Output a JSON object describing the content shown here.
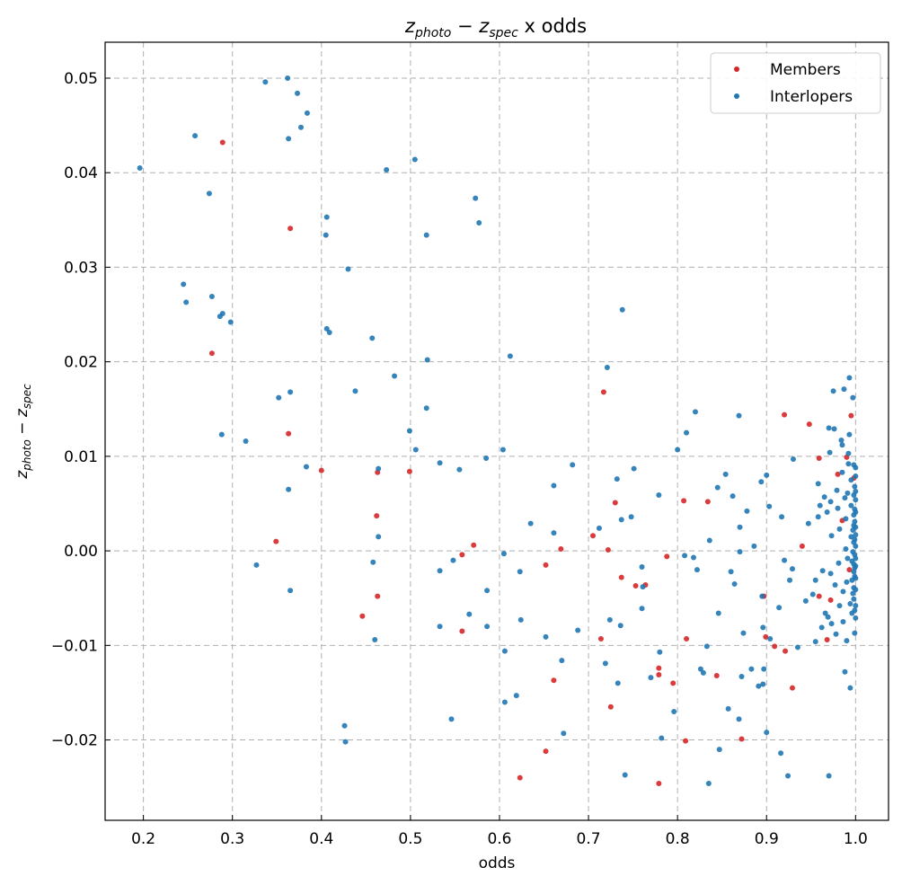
{
  "chart_data": {
    "type": "scatter",
    "title": {
      "base1": "z",
      "sub1": "photo",
      "minus": " − ",
      "base2": "z",
      "sub2": "spec",
      "rest": " x odds"
    },
    "xlabel": "odds",
    "ylabel": {
      "base1": "z",
      "sub1": "photo",
      "minus": " − ",
      "base2": "z",
      "sub2": "spec"
    },
    "xlim": [
      0.157,
      1.037
    ],
    "ylim": [
      -0.0285,
      0.0538
    ],
    "xticks": [
      0.2,
      0.3,
      0.4,
      0.5,
      0.6,
      0.7,
      0.8,
      0.9,
      1.0
    ],
    "xtick_labels": [
      "0.2",
      "0.3",
      "0.4",
      "0.5",
      "0.6",
      "0.7",
      "0.8",
      "0.9",
      "1.0"
    ],
    "yticks": [
      -0.02,
      -0.01,
      0.0,
      0.01,
      0.02,
      0.03,
      0.04,
      0.05
    ],
    "ytick_labels": [
      "−0.02",
      "−0.01",
      "0.00",
      "0.01",
      "0.02",
      "0.03",
      "0.04",
      "0.05"
    ],
    "grid": true,
    "legend_position": "top-right",
    "series": [
      {
        "name": "Members",
        "color": "#d62728",
        "points": [
          [
            0.289,
            0.0432
          ],
          [
            0.365,
            0.0341
          ],
          [
            0.277,
            0.0209
          ],
          [
            0.363,
            0.0124
          ],
          [
            0.349,
            0.001
          ],
          [
            0.4,
            0.0085
          ],
          [
            0.463,
            0.0083
          ],
          [
            0.499,
            0.0084
          ],
          [
            0.462,
            0.0037
          ],
          [
            0.463,
            -0.0048
          ],
          [
            0.446,
            -0.0069
          ],
          [
            0.571,
            0.0006
          ],
          [
            0.558,
            -0.0004
          ],
          [
            0.558,
            -0.0085
          ],
          [
            0.652,
            -0.0015
          ],
          [
            0.669,
            0.0002
          ],
          [
            0.661,
            -0.0137
          ],
          [
            0.652,
            -0.0212
          ],
          [
            0.623,
            -0.024
          ],
          [
            0.717,
            0.0168
          ],
          [
            0.73,
            0.0051
          ],
          [
            0.705,
            0.0016
          ],
          [
            0.722,
            0.0001
          ],
          [
            0.737,
            -0.0028
          ],
          [
            0.753,
            -0.0037
          ],
          [
            0.764,
            -0.0036
          ],
          [
            0.788,
            -0.0006
          ],
          [
            0.714,
            -0.0093
          ],
          [
            0.725,
            -0.0165
          ],
          [
            0.779,
            -0.0124
          ],
          [
            0.779,
            -0.0131
          ],
          [
            0.795,
            -0.014
          ],
          [
            0.779,
            -0.0246
          ],
          [
            0.807,
            0.0053
          ],
          [
            0.834,
            0.0052
          ],
          [
            0.81,
            -0.0093
          ],
          [
            0.809,
            -0.0201
          ],
          [
            0.844,
            -0.0132
          ],
          [
            0.872,
            -0.0199
          ],
          [
            0.897,
            -0.0048
          ],
          [
            0.899,
            -0.0091
          ],
          [
            0.909,
            -0.0101
          ],
          [
            0.921,
            -0.0106
          ],
          [
            0.929,
            -0.0145
          ],
          [
            0.92,
            0.0144
          ],
          [
            0.948,
            0.0134
          ],
          [
            0.94,
            0.0005
          ],
          [
            0.959,
            0.0098
          ],
          [
            0.959,
            -0.0048
          ],
          [
            0.968,
            -0.0094
          ],
          [
            0.99,
            0.0099
          ],
          [
            0.995,
            0.0143
          ],
          [
            0.998,
            0.0077
          ],
          [
            0.98,
            0.0081
          ],
          [
            0.972,
            -0.0052
          ],
          [
            0.985,
            0.0032
          ],
          [
            0.993,
            -0.002
          ]
        ]
      },
      {
        "name": "Interlopers",
        "color": "#1f77b4",
        "points": [
          [
            0.196,
            0.0405
          ],
          [
            0.258,
            0.0439
          ],
          [
            0.274,
            0.0378
          ],
          [
            0.245,
            0.0282
          ],
          [
            0.248,
            0.0263
          ],
          [
            0.277,
            0.0269
          ],
          [
            0.289,
            0.0251
          ],
          [
            0.286,
            0.0248
          ],
          [
            0.298,
            0.0242
          ],
          [
            0.288,
            0.0123
          ],
          [
            0.315,
            0.0116
          ],
          [
            0.327,
            -0.0015
          ],
          [
            0.337,
            0.0496
          ],
          [
            0.362,
            0.05
          ],
          [
            0.373,
            0.0484
          ],
          [
            0.384,
            0.0463
          ],
          [
            0.377,
            0.0448
          ],
          [
            0.363,
            0.0436
          ],
          [
            0.405,
            0.0334
          ],
          [
            0.406,
            0.0353
          ],
          [
            0.43,
            0.0298
          ],
          [
            0.406,
            0.0235
          ],
          [
            0.409,
            0.0231
          ],
          [
            0.365,
            0.0168
          ],
          [
            0.352,
            0.0162
          ],
          [
            0.383,
            0.0089
          ],
          [
            0.363,
            0.0065
          ],
          [
            0.365,
            -0.0042
          ],
          [
            0.457,
            0.0225
          ],
          [
            0.438,
            0.0169
          ],
          [
            0.464,
            0.0087
          ],
          [
            0.464,
            0.0015
          ],
          [
            0.458,
            -0.0012
          ],
          [
            0.46,
            -0.0094
          ],
          [
            0.426,
            -0.0185
          ],
          [
            0.427,
            -0.0202
          ],
          [
            0.473,
            0.0403
          ],
          [
            0.505,
            0.0414
          ],
          [
            0.518,
            0.0334
          ],
          [
            0.482,
            0.0185
          ],
          [
            0.519,
            0.0202
          ],
          [
            0.518,
            0.0151
          ],
          [
            0.499,
            0.0127
          ],
          [
            0.506,
            0.0107
          ],
          [
            0.533,
            0.0093
          ],
          [
            0.555,
            0.0086
          ],
          [
            0.548,
            -0.001
          ],
          [
            0.533,
            -0.0021
          ],
          [
            0.533,
            -0.008
          ],
          [
            0.566,
            -0.0067
          ],
          [
            0.586,
            -0.0042
          ],
          [
            0.586,
            -0.008
          ],
          [
            0.546,
            -0.0178
          ],
          [
            0.573,
            0.0373
          ],
          [
            0.577,
            0.0347
          ],
          [
            0.612,
            0.0206
          ],
          [
            0.585,
            0.0098
          ],
          [
            0.604,
            0.0107
          ],
          [
            0.605,
            -0.0003
          ],
          [
            0.623,
            -0.0022
          ],
          [
            0.624,
            -0.0073
          ],
          [
            0.606,
            -0.0106
          ],
          [
            0.606,
            -0.016
          ],
          [
            0.619,
            -0.0153
          ],
          [
            0.738,
            0.0255
          ],
          [
            0.721,
            0.0194
          ],
          [
            0.635,
            0.0029
          ],
          [
            0.661,
            0.0069
          ],
          [
            0.661,
            0.0019
          ],
          [
            0.682,
            0.0091
          ],
          [
            0.712,
            0.0024
          ],
          [
            0.732,
            0.0076
          ],
          [
            0.737,
            0.0033
          ],
          [
            0.748,
            0.0036
          ],
          [
            0.751,
            0.0087
          ],
          [
            0.652,
            -0.0091
          ],
          [
            0.688,
            -0.0084
          ],
          [
            0.67,
            -0.0116
          ],
          [
            0.672,
            -0.0193
          ],
          [
            0.719,
            -0.0119
          ],
          [
            0.724,
            -0.0073
          ],
          [
            0.736,
            -0.0079
          ],
          [
            0.733,
            -0.014
          ],
          [
            0.741,
            -0.0237
          ],
          [
            0.77,
            -0.0134
          ],
          [
            0.76,
            -0.0017
          ],
          [
            0.761,
            -0.0038
          ],
          [
            0.76,
            -0.0061
          ],
          [
            0.779,
            0.0059
          ],
          [
            0.78,
            -0.0107
          ],
          [
            0.782,
            -0.0198
          ],
          [
            0.796,
            -0.017
          ],
          [
            0.8,
            0.0107
          ],
          [
            0.81,
            0.0125
          ],
          [
            0.82,
            0.0147
          ],
          [
            0.808,
            -0.0005
          ],
          [
            0.818,
            -0.0007
          ],
          [
            0.822,
            -0.002
          ],
          [
            0.836,
            0.0011
          ],
          [
            0.845,
            0.0067
          ],
          [
            0.854,
            0.0081
          ],
          [
            0.862,
            0.0058
          ],
          [
            0.869,
            0.0143
          ],
          [
            0.87,
            0.0025
          ],
          [
            0.87,
            -0.0001
          ],
          [
            0.878,
            0.0042
          ],
          [
            0.886,
            0.0005
          ],
          [
            0.894,
            0.0073
          ],
          [
            0.9,
            0.008
          ],
          [
            0.903,
            0.0047
          ],
          [
            0.86,
            -0.0022
          ],
          [
            0.864,
            -0.0035
          ],
          [
            0.826,
            -0.0125
          ],
          [
            0.829,
            -0.0129
          ],
          [
            0.833,
            -0.0101
          ],
          [
            0.846,
            -0.0066
          ],
          [
            0.847,
            -0.021
          ],
          [
            0.857,
            -0.0167
          ],
          [
            0.869,
            -0.0178
          ],
          [
            0.872,
            -0.0133
          ],
          [
            0.874,
            -0.0087
          ],
          [
            0.883,
            -0.0125
          ],
          [
            0.891,
            -0.0143
          ],
          [
            0.896,
            -0.0141
          ],
          [
            0.897,
            -0.0125
          ],
          [
            0.895,
            -0.0048
          ],
          [
            0.896,
            -0.0081
          ],
          [
            0.904,
            -0.0093
          ],
          [
            0.9,
            -0.0192
          ],
          [
            0.914,
            -0.006
          ],
          [
            0.916,
            -0.0214
          ],
          [
            0.924,
            -0.0238
          ],
          [
            0.835,
            -0.0246
          ],
          [
            0.917,
            0.0036
          ],
          [
            0.92,
            -0.001
          ],
          [
            0.926,
            -0.0031
          ],
          [
            0.929,
            -0.0019
          ],
          [
            0.93,
            0.0097
          ],
          [
            0.935,
            -0.0102
          ],
          [
            0.944,
            -0.0053
          ],
          [
            0.947,
            0.0029
          ],
          [
            0.952,
            -0.0046
          ],
          [
            0.955,
            -0.0031
          ],
          [
            0.955,
            -0.0096
          ],
          [
            0.958,
            0.0036
          ],
          [
            0.958,
            0.0071
          ],
          [
            0.96,
            0.0048
          ],
          [
            0.962,
            -0.0081
          ],
          [
            0.963,
            -0.0021
          ],
          [
            0.965,
            0.0057
          ],
          [
            0.966,
            -0.0066
          ],
          [
            0.968,
            0.0041
          ],
          [
            0.969,
            -0.007
          ],
          [
            0.97,
            0.013
          ],
          [
            0.971,
            0.0104
          ],
          [
            0.972,
            0.0052
          ],
          [
            0.972,
            -0.0024
          ],
          [
            0.973,
            0.0016
          ],
          [
            0.973,
            -0.0077
          ],
          [
            0.975,
            0.0169
          ],
          [
            0.976,
            0.0129
          ],
          [
            0.977,
            -0.0036
          ],
          [
            0.978,
            -0.0088
          ],
          [
            0.979,
            0.0064
          ],
          [
            0.98,
            0.0045
          ],
          [
            0.981,
            -0.0013
          ],
          [
            0.982,
            -0.0058
          ],
          [
            0.982,
            0.0023
          ],
          [
            0.984,
            0.0117
          ],
          [
            0.985,
            0.0112
          ],
          [
            0.985,
            0.0083
          ],
          [
            0.986,
            -0.0043
          ],
          [
            0.986,
            -0.0075
          ],
          [
            0.987,
            0.0171
          ],
          [
            0.988,
            0.0056
          ],
          [
            0.988,
            -0.0128
          ],
          [
            0.989,
            0.0034
          ],
          [
            0.989,
            0.0002
          ],
          [
            0.99,
            -0.0033
          ],
          [
            0.99,
            -0.0095
          ],
          [
            0.991,
            0.0061
          ],
          [
            0.991,
            -0.0008
          ],
          [
            0.992,
            0.0092
          ],
          [
            0.992,
            0.0103
          ],
          [
            0.993,
            0.0183
          ],
          [
            0.993,
            0.0123
          ],
          [
            0.994,
            -0.0056
          ],
          [
            0.994,
            -0.0145
          ],
          [
            0.995,
            0.0015
          ],
          [
            0.995,
            0.0075
          ],
          [
            0.995,
            0.0048
          ],
          [
            0.996,
            -0.0011
          ],
          [
            0.996,
            -0.0031
          ],
          [
            0.996,
            -0.0066
          ],
          [
            0.997,
            0.0162
          ],
          [
            0.997,
            0.0022
          ],
          [
            0.997,
            -0.0001
          ],
          [
            0.997,
            -0.0045
          ],
          [
            0.998,
            0.0091
          ],
          [
            0.998,
            0.0059
          ],
          [
            0.998,
            0.0038
          ],
          [
            0.998,
            0.0027
          ],
          [
            0.998,
            0.0009
          ],
          [
            0.998,
            -0.0014
          ],
          [
            0.998,
            -0.0022
          ],
          [
            0.998,
            -0.0039
          ],
          [
            0.998,
            -0.0051
          ],
          [
            0.999,
            0.0068
          ],
          [
            0.999,
            0.0044
          ],
          [
            0.999,
            0.0031
          ],
          [
            0.999,
            0.0012
          ],
          [
            0.999,
            -0.0004
          ],
          [
            0.999,
            -0.0018
          ],
          [
            0.999,
            -0.0027
          ],
          [
            0.999,
            -0.0063
          ],
          [
            0.999,
            -0.0087
          ],
          [
            1.0,
            0.0088
          ],
          [
            1.0,
            0.0079
          ],
          [
            1.0,
            0.0063
          ],
          [
            1.0,
            0.0054
          ],
          [
            1.0,
            0.0041
          ],
          [
            1.0,
            0.0025
          ],
          [
            1.0,
            0.0017
          ],
          [
            1.0,
            0.0005
          ],
          [
            1.0,
            -0.0008
          ],
          [
            1.0,
            -0.0016
          ],
          [
            1.0,
            -0.0029
          ],
          [
            1.0,
            -0.0041
          ],
          [
            1.0,
            -0.0058
          ],
          [
            1.0,
            -0.0071
          ],
          [
            0.97,
            -0.0238
          ]
        ]
      }
    ]
  }
}
